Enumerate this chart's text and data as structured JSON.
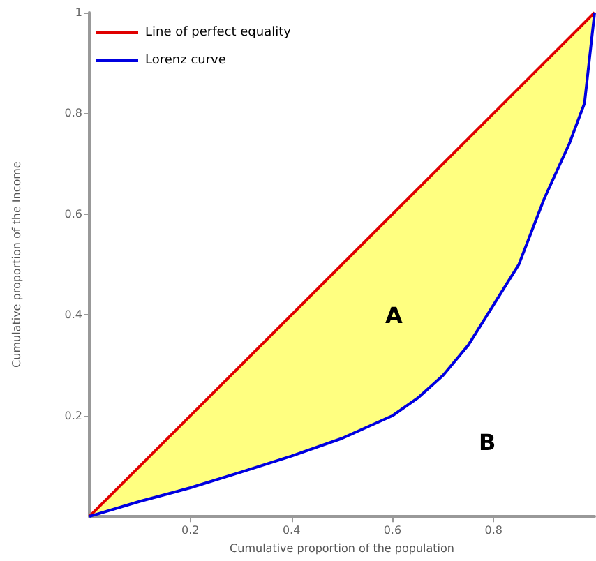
{
  "chart_data": {
    "type": "line",
    "xlabel": "Cumulative proportion of the population",
    "ylabel": "Cumulative proportion of the Income",
    "xlim": [
      0,
      1
    ],
    "ylim": [
      0,
      1
    ],
    "xticks": [
      0.2,
      0.4,
      0.6,
      0.8
    ],
    "yticks": [
      0.2,
      0.4,
      0.6,
      0.8,
      1
    ],
    "grid": false,
    "legend": "top left",
    "marker": "none",
    "line_style": "solid",
    "series": [
      {
        "name": "Line of perfect equality",
        "color": "#e00000",
        "x": [
          0,
          1
        ],
        "values": [
          0,
          1
        ]
      },
      {
        "name": "Lorenz curve",
        "color": "#0000e0",
        "x": [
          0,
          0.1,
          0.2,
          0.3,
          0.4,
          0.5,
          0.6,
          0.65,
          0.7,
          0.75,
          0.8,
          0.85,
          0.9,
          0.95,
          0.98,
          1
        ],
        "values": [
          0,
          0.03,
          0.057,
          0.088,
          0.12,
          0.155,
          0.2,
          0.235,
          0.28,
          0.34,
          0.42,
          0.5,
          0.63,
          0.74,
          0.82,
          1
        ],
        "lower": [
          0,
          0.03,
          0.057,
          0.088,
          0.12,
          0.155,
          0.2,
          0.235,
          0.28,
          0.34,
          0.42,
          0.5,
          0.63,
          0.74,
          0.82,
          1
        ],
        "upper": [
          0,
          0.1,
          0.2,
          0.3,
          0.4,
          0.5,
          0.6,
          0.65,
          0.7,
          0.75,
          0.8,
          0.85,
          0.9,
          0.95,
          0.98,
          1
        ]
      }
    ],
    "annotations": [
      "A",
      "B"
    ]
  }
}
